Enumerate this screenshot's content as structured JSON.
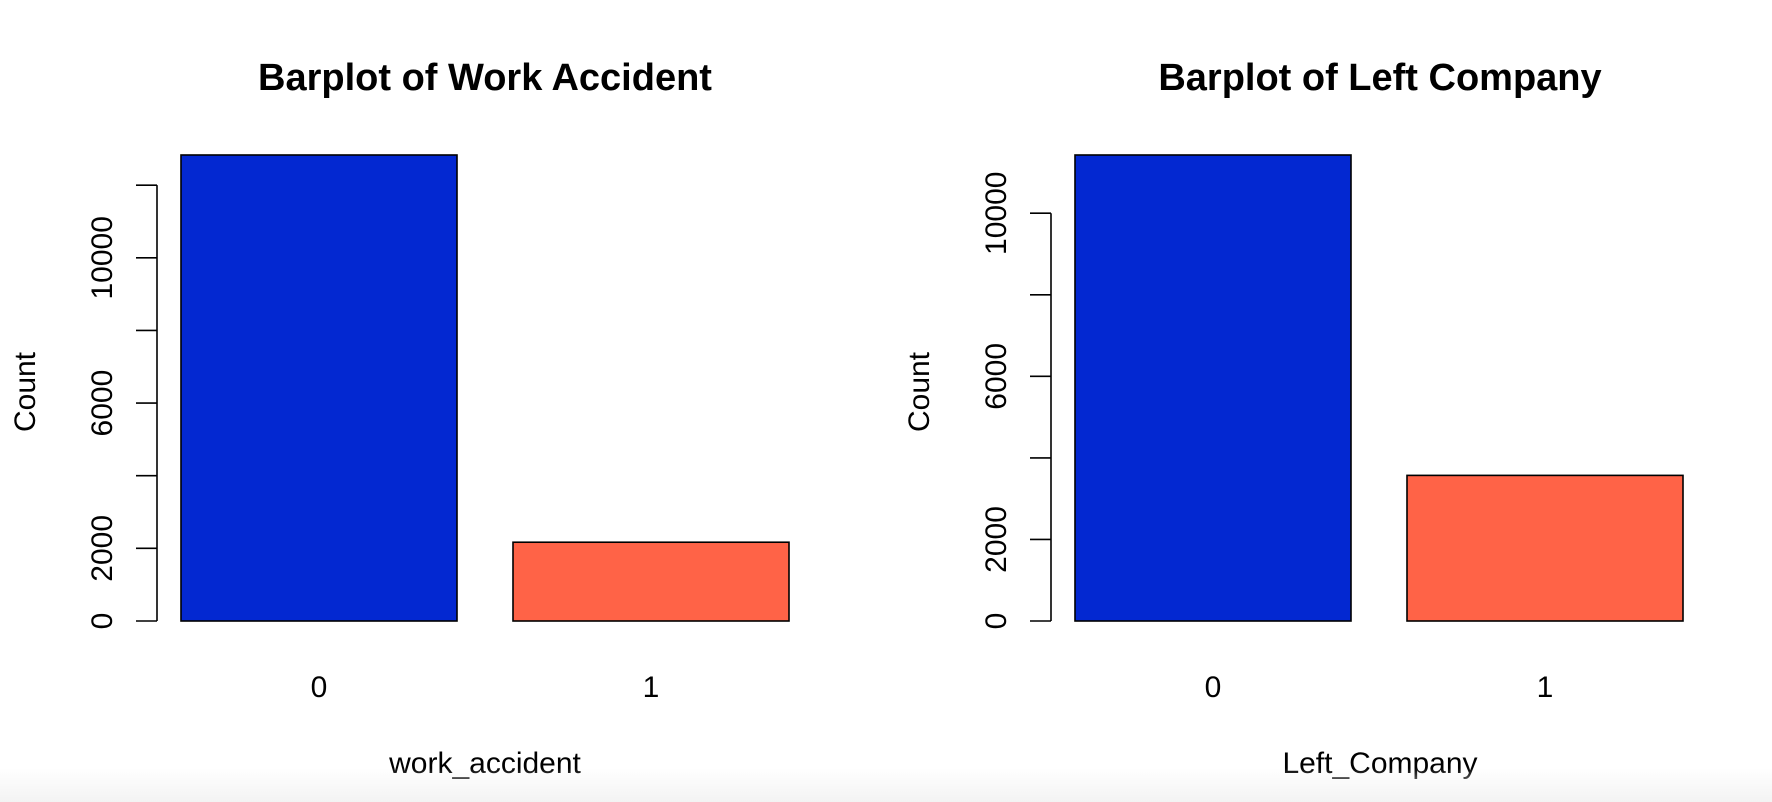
{
  "chart_data": [
    {
      "type": "bar",
      "title": "Barplot of Work Accident",
      "xlabel": "work_accident",
      "ylabel": "Count",
      "categories": [
        "0",
        "1"
      ],
      "values": [
        12830,
        2169
      ],
      "ylim": [
        0,
        12830
      ],
      "y_ticks": [
        0,
        2000,
        4000,
        6000,
        8000,
        10000,
        12000
      ],
      "y_tick_labels": [
        "0",
        "2000",
        "",
        "6000",
        "",
        "10000",
        ""
      ],
      "colors": [
        "#0328d1",
        "#ff6347"
      ],
      "grid": false
    },
    {
      "type": "bar",
      "title": "Barplot of Left Company",
      "xlabel": "Left_Company",
      "ylabel": "Count",
      "categories": [
        "0",
        "1"
      ],
      "values": [
        11428,
        3571
      ],
      "ylim": [
        0,
        11428
      ],
      "y_ticks": [
        0,
        2000,
        4000,
        6000,
        8000,
        10000
      ],
      "y_tick_labels": [
        "0",
        "2000",
        "",
        "6000",
        "",
        "10000"
      ],
      "colors": [
        "#0328d1",
        "#ff6347"
      ],
      "grid": false
    }
  ]
}
